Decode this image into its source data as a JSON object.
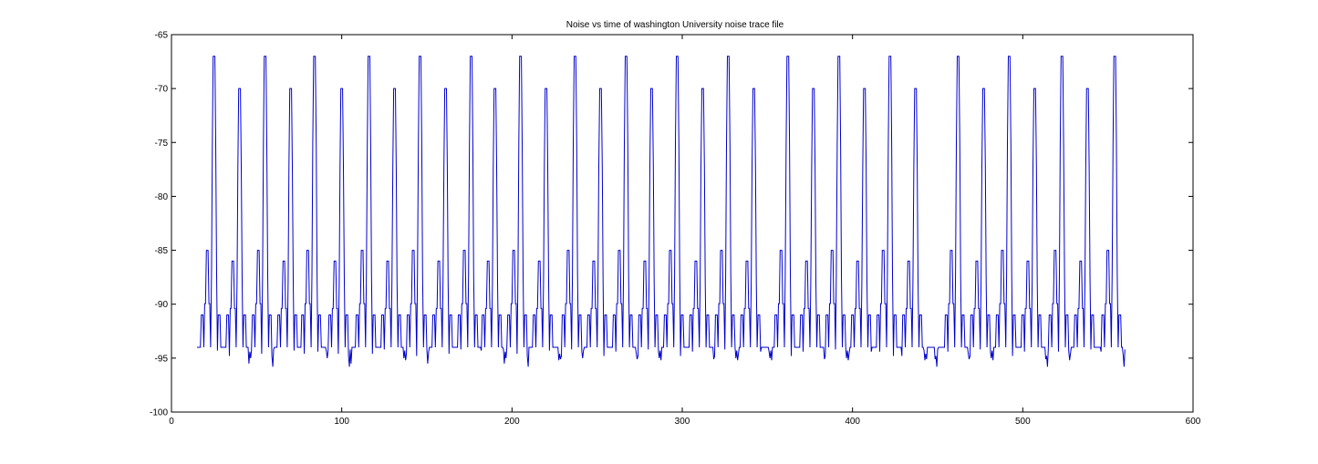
{
  "chart_data": {
    "type": "line",
    "title": "Noise vs time of washington University noise trace file",
    "xlabel": "",
    "ylabel": "",
    "xlim": [
      0,
      600
    ],
    "ylim": [
      -100,
      -65
    ],
    "x_ticks": [
      0,
      100,
      200,
      300,
      400,
      500,
      600
    ],
    "y_ticks": [
      -65,
      -70,
      -75,
      -80,
      -85,
      -90,
      -95,
      -100
    ],
    "x_tick_labels": [
      "0",
      "100",
      "200",
      "300",
      "400",
      "500",
      "600"
    ],
    "y_tick_labels": [
      "-65",
      "-70",
      "-75",
      "-80",
      "-85",
      "-90",
      "-95",
      "-100"
    ],
    "grid": false,
    "line_color": "#0000cc",
    "series": [
      {
        "x_start": 15,
        "x_end": 560,
        "baseline": -94,
        "low_noise": [
          -94.2,
          -95,
          -94.6,
          -95.8,
          -94.4,
          -95.2,
          -94.8,
          -95.5,
          -94.3,
          -95.1
        ],
        "major_peaks": [
          {
            "x": 25,
            "y": -67,
            "sub_x": 21,
            "sub_y": -85
          },
          {
            "x": 55,
            "y": -67,
            "sub_x": 51,
            "sub_y": -85
          },
          {
            "x": 70,
            "y": -70,
            "sub_x": 66,
            "sub_y": -86
          },
          {
            "x": 84,
            "y": -67,
            "sub_x": 80,
            "sub_y": -85
          },
          {
            "x": 116,
            "y": -67,
            "sub_x": 112,
            "sub_y": -85
          },
          {
            "x": 146,
            "y": -67,
            "sub_x": 142,
            "sub_y": -85
          },
          {
            "x": 176,
            "y": -67,
            "sub_x": 172,
            "sub_y": -85
          },
          {
            "x": 205,
            "y": -67,
            "sub_x": 201,
            "sub_y": -85
          },
          {
            "x": 237,
            "y": -67,
            "sub_x": 233,
            "sub_y": -85
          },
          {
            "x": 267,
            "y": -67,
            "sub_x": 263,
            "sub_y": -85
          },
          {
            "x": 297,
            "y": -67,
            "sub_x": 293,
            "sub_y": -85
          },
          {
            "x": 327,
            "y": -67,
            "sub_x": 323,
            "sub_y": -85
          },
          {
            "x": 362,
            "y": -67,
            "sub_x": 358,
            "sub_y": -85
          },
          {
            "x": 392,
            "y": -67,
            "sub_x": 388,
            "sub_y": -85
          },
          {
            "x": 422,
            "y": -67,
            "sub_x": 418,
            "sub_y": -85
          },
          {
            "x": 462,
            "y": -67,
            "sub_x": 458,
            "sub_y": -85
          },
          {
            "x": 492,
            "y": -67,
            "sub_x": 488,
            "sub_y": -85
          },
          {
            "x": 523,
            "y": -67,
            "sub_x": 519,
            "sub_y": -85
          },
          {
            "x": 554,
            "y": -67,
            "sub_x": 550,
            "sub_y": -85
          }
        ],
        "minor_peaks": [
          {
            "x": 40,
            "y": -70,
            "sub_x": 36,
            "sub_y": -86
          },
          {
            "x": 100,
            "y": -70,
            "sub_x": 96,
            "sub_y": -86
          },
          {
            "x": 131,
            "y": -70,
            "sub_x": 127,
            "sub_y": -86
          },
          {
            "x": 161,
            "y": -70,
            "sub_x": 157,
            "sub_y": -86
          },
          {
            "x": 190,
            "y": -70,
            "sub_x": 186,
            "sub_y": -86
          },
          {
            "x": 220,
            "y": -70,
            "sub_x": 216,
            "sub_y": -86
          },
          {
            "x": 252,
            "y": -70,
            "sub_x": 248,
            "sub_y": -86
          },
          {
            "x": 282,
            "y": -70,
            "sub_x": 278,
            "sub_y": -86
          },
          {
            "x": 312,
            "y": -70,
            "sub_x": 308,
            "sub_y": -86
          },
          {
            "x": 342,
            "y": -70,
            "sub_x": 338,
            "sub_y": -86
          },
          {
            "x": 377,
            "y": -70,
            "sub_x": 373,
            "sub_y": -86
          },
          {
            "x": 407,
            "y": -70,
            "sub_x": 403,
            "sub_y": -86
          },
          {
            "x": 437,
            "y": -70,
            "sub_x": 433,
            "sub_y": -86
          },
          {
            "x": 477,
            "y": -70,
            "sub_x": 473,
            "sub_y": -86
          },
          {
            "x": 507,
            "y": -70,
            "sub_x": 503,
            "sub_y": -86
          },
          {
            "x": 538,
            "y": -70,
            "sub_x": 534,
            "sub_y": -86
          }
        ]
      }
    ]
  }
}
